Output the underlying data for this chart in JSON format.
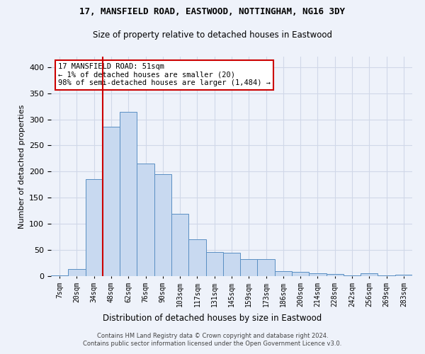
{
  "title1": "17, MANSFIELD ROAD, EASTWOOD, NOTTINGHAM, NG16 3DY",
  "title2": "Size of property relative to detached houses in Eastwood",
  "xlabel": "Distribution of detached houses by size in Eastwood",
  "ylabel": "Number of detached properties",
  "categories": [
    "7sqm",
    "20sqm",
    "34sqm",
    "48sqm",
    "62sqm",
    "76sqm",
    "90sqm",
    "103sqm",
    "117sqm",
    "131sqm",
    "145sqm",
    "159sqm",
    "173sqm",
    "186sqm",
    "200sqm",
    "214sqm",
    "228sqm",
    "242sqm",
    "256sqm",
    "269sqm",
    "283sqm"
  ],
  "values": [
    2,
    14,
    185,
    286,
    315,
    215,
    195,
    119,
    70,
    46,
    45,
    32,
    32,
    10,
    8,
    5,
    4,
    2,
    6,
    2,
    3
  ],
  "bar_color": "#c8d9f0",
  "bar_edge_color": "#5a8fc3",
  "vline_color": "#cc0000",
  "annotation_text": "17 MANSFIELD ROAD: 51sqm\n← 1% of detached houses are smaller (20)\n98% of semi-detached houses are larger (1,484) →",
  "annotation_box_color": "#ffffff",
  "annotation_box_edge_color": "#cc0000",
  "grid_color": "#d0d8e8",
  "background_color": "#eef2fa",
  "ylim": [
    0,
    420
  ],
  "yticks": [
    0,
    50,
    100,
    150,
    200,
    250,
    300,
    350,
    400
  ],
  "footer1": "Contains HM Land Registry data © Crown copyright and database right 2024.",
  "footer2": "Contains public sector information licensed under the Open Government Licence v3.0."
}
